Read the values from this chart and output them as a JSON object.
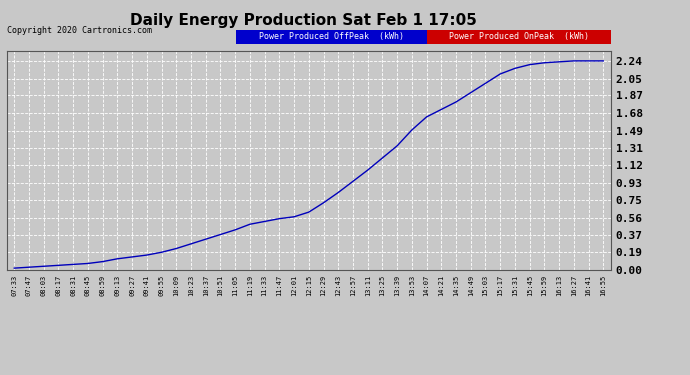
{
  "title": "Daily Energy Production Sat Feb 1 17:05",
  "copyright": "Copyright 2020 Cartronics.com",
  "legend_offpeak": "Power Produced OffPeak  (kWh)",
  "legend_onpeak": "Power Produced OnPeak  (kWh)",
  "line_color": "#0000bb",
  "offpeak_legend_bg": "#0000cc",
  "onpeak_legend_bg": "#cc0000",
  "background_color": "#c8c8c8",
  "plot_bg_color": "#c8c8c8",
  "grid_color": "#aaaaaa",
  "yticks": [
    0.0,
    0.19,
    0.37,
    0.56,
    0.75,
    0.93,
    1.12,
    1.31,
    1.49,
    1.68,
    1.87,
    2.05,
    2.24
  ],
  "ylim": [
    0.0,
    2.35
  ],
  "x_labels": [
    "07:33",
    "07:47",
    "08:03",
    "08:17",
    "08:31",
    "08:45",
    "08:59",
    "09:13",
    "09:27",
    "09:41",
    "09:55",
    "10:09",
    "10:23",
    "10:37",
    "10:51",
    "11:05",
    "11:19",
    "11:33",
    "11:47",
    "12:01",
    "12:15",
    "12:29",
    "12:43",
    "12:57",
    "13:11",
    "13:25",
    "13:39",
    "13:53",
    "14:07",
    "14:21",
    "14:35",
    "14:49",
    "15:03",
    "15:17",
    "15:31",
    "15:45",
    "15:59",
    "16:13",
    "16:27",
    "16:41",
    "16:55"
  ],
  "y_values": [
    0.02,
    0.03,
    0.04,
    0.05,
    0.06,
    0.07,
    0.09,
    0.12,
    0.14,
    0.16,
    0.19,
    0.23,
    0.28,
    0.33,
    0.38,
    0.43,
    0.49,
    0.52,
    0.55,
    0.57,
    0.62,
    0.72,
    0.83,
    0.95,
    1.07,
    1.2,
    1.33,
    1.5,
    1.64,
    1.72,
    1.8,
    1.9,
    2.0,
    2.1,
    2.16,
    2.2,
    2.22,
    2.23,
    2.24,
    2.24,
    2.24
  ],
  "title_fontsize": 11,
  "copyright_fontsize": 6,
  "legend_fontsize": 6,
  "ytick_fontsize": 8,
  "xtick_fontsize": 5
}
